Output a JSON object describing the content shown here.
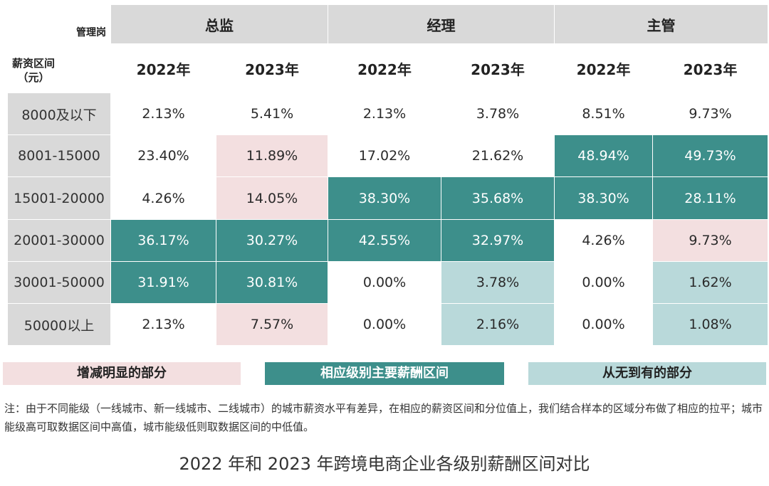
{
  "table": {
    "corner_top": "管理岗",
    "corner_bottom": "薪资区间\n（元）",
    "roles": [
      "总监",
      "经理",
      "主管"
    ],
    "years": [
      "2022年",
      "2023年",
      "2022年",
      "2023年",
      "2022年",
      "2023年"
    ],
    "rows": [
      {
        "label": "8000及以下",
        "values": [
          "2.13%",
          "5.41%",
          "2.13%",
          "3.78%",
          "8.51%",
          "9.73%"
        ]
      },
      {
        "label": "8001-15000",
        "values": [
          "23.40%",
          "11.89%",
          "17.02%",
          "21.62%",
          "48.94%",
          "49.73%"
        ]
      },
      {
        "label": "15001-20000",
        "values": [
          "4.26%",
          "14.05%",
          "38.30%",
          "35.68%",
          "38.30%",
          "28.11%"
        ]
      },
      {
        "label": "20001-30000",
        "values": [
          "36.17%",
          "30.27%",
          "42.55%",
          "32.97%",
          "4.26%",
          "9.73%"
        ]
      },
      {
        "label": "30001-50000",
        "values": [
          "31.91%",
          "30.81%",
          "0.00%",
          "3.78%",
          "0.00%",
          "1.62%"
        ]
      },
      {
        "label": "50000以上",
        "values": [
          "2.13%",
          "7.57%",
          "0.00%",
          "2.16%",
          "0.00%",
          "1.08%"
        ]
      }
    ],
    "highlights": [
      [
        "",
        "",
        "",
        "",
        "",
        ""
      ],
      [
        "",
        "pink",
        "",
        "",
        "teal",
        "teal"
      ],
      [
        "",
        "pink",
        "teal",
        "teal",
        "teal",
        "teal"
      ],
      [
        "teal",
        "teal",
        "teal",
        "teal",
        "",
        "pink"
      ],
      [
        "teal",
        "teal",
        "",
        "light",
        "",
        "light"
      ],
      [
        "",
        "pink",
        "",
        "light",
        "",
        "light"
      ]
    ]
  },
  "legend": {
    "pink": "增减明显的部分",
    "teal": "相应级别主要薪酬区间",
    "light": "从无到有的部分"
  },
  "colors": {
    "pink": "#f3dfe0",
    "teal": "#3d8f8b",
    "light": "#b9d9da",
    "header_grey": "#d9d9d9"
  },
  "note": "注：由于不同能级（一线城市、新一线城市、二线城市）的城市薪资水平有差异，在相应的薪资区间和分位值上，我们结合样本的区域分布做了相应的拉平；城市能级高可取数据区间中高值，城市能级低则取数据区间的中低值。",
  "caption": "2022 年和 2023 年跨境电商企业各级别薪酬区间对比"
}
